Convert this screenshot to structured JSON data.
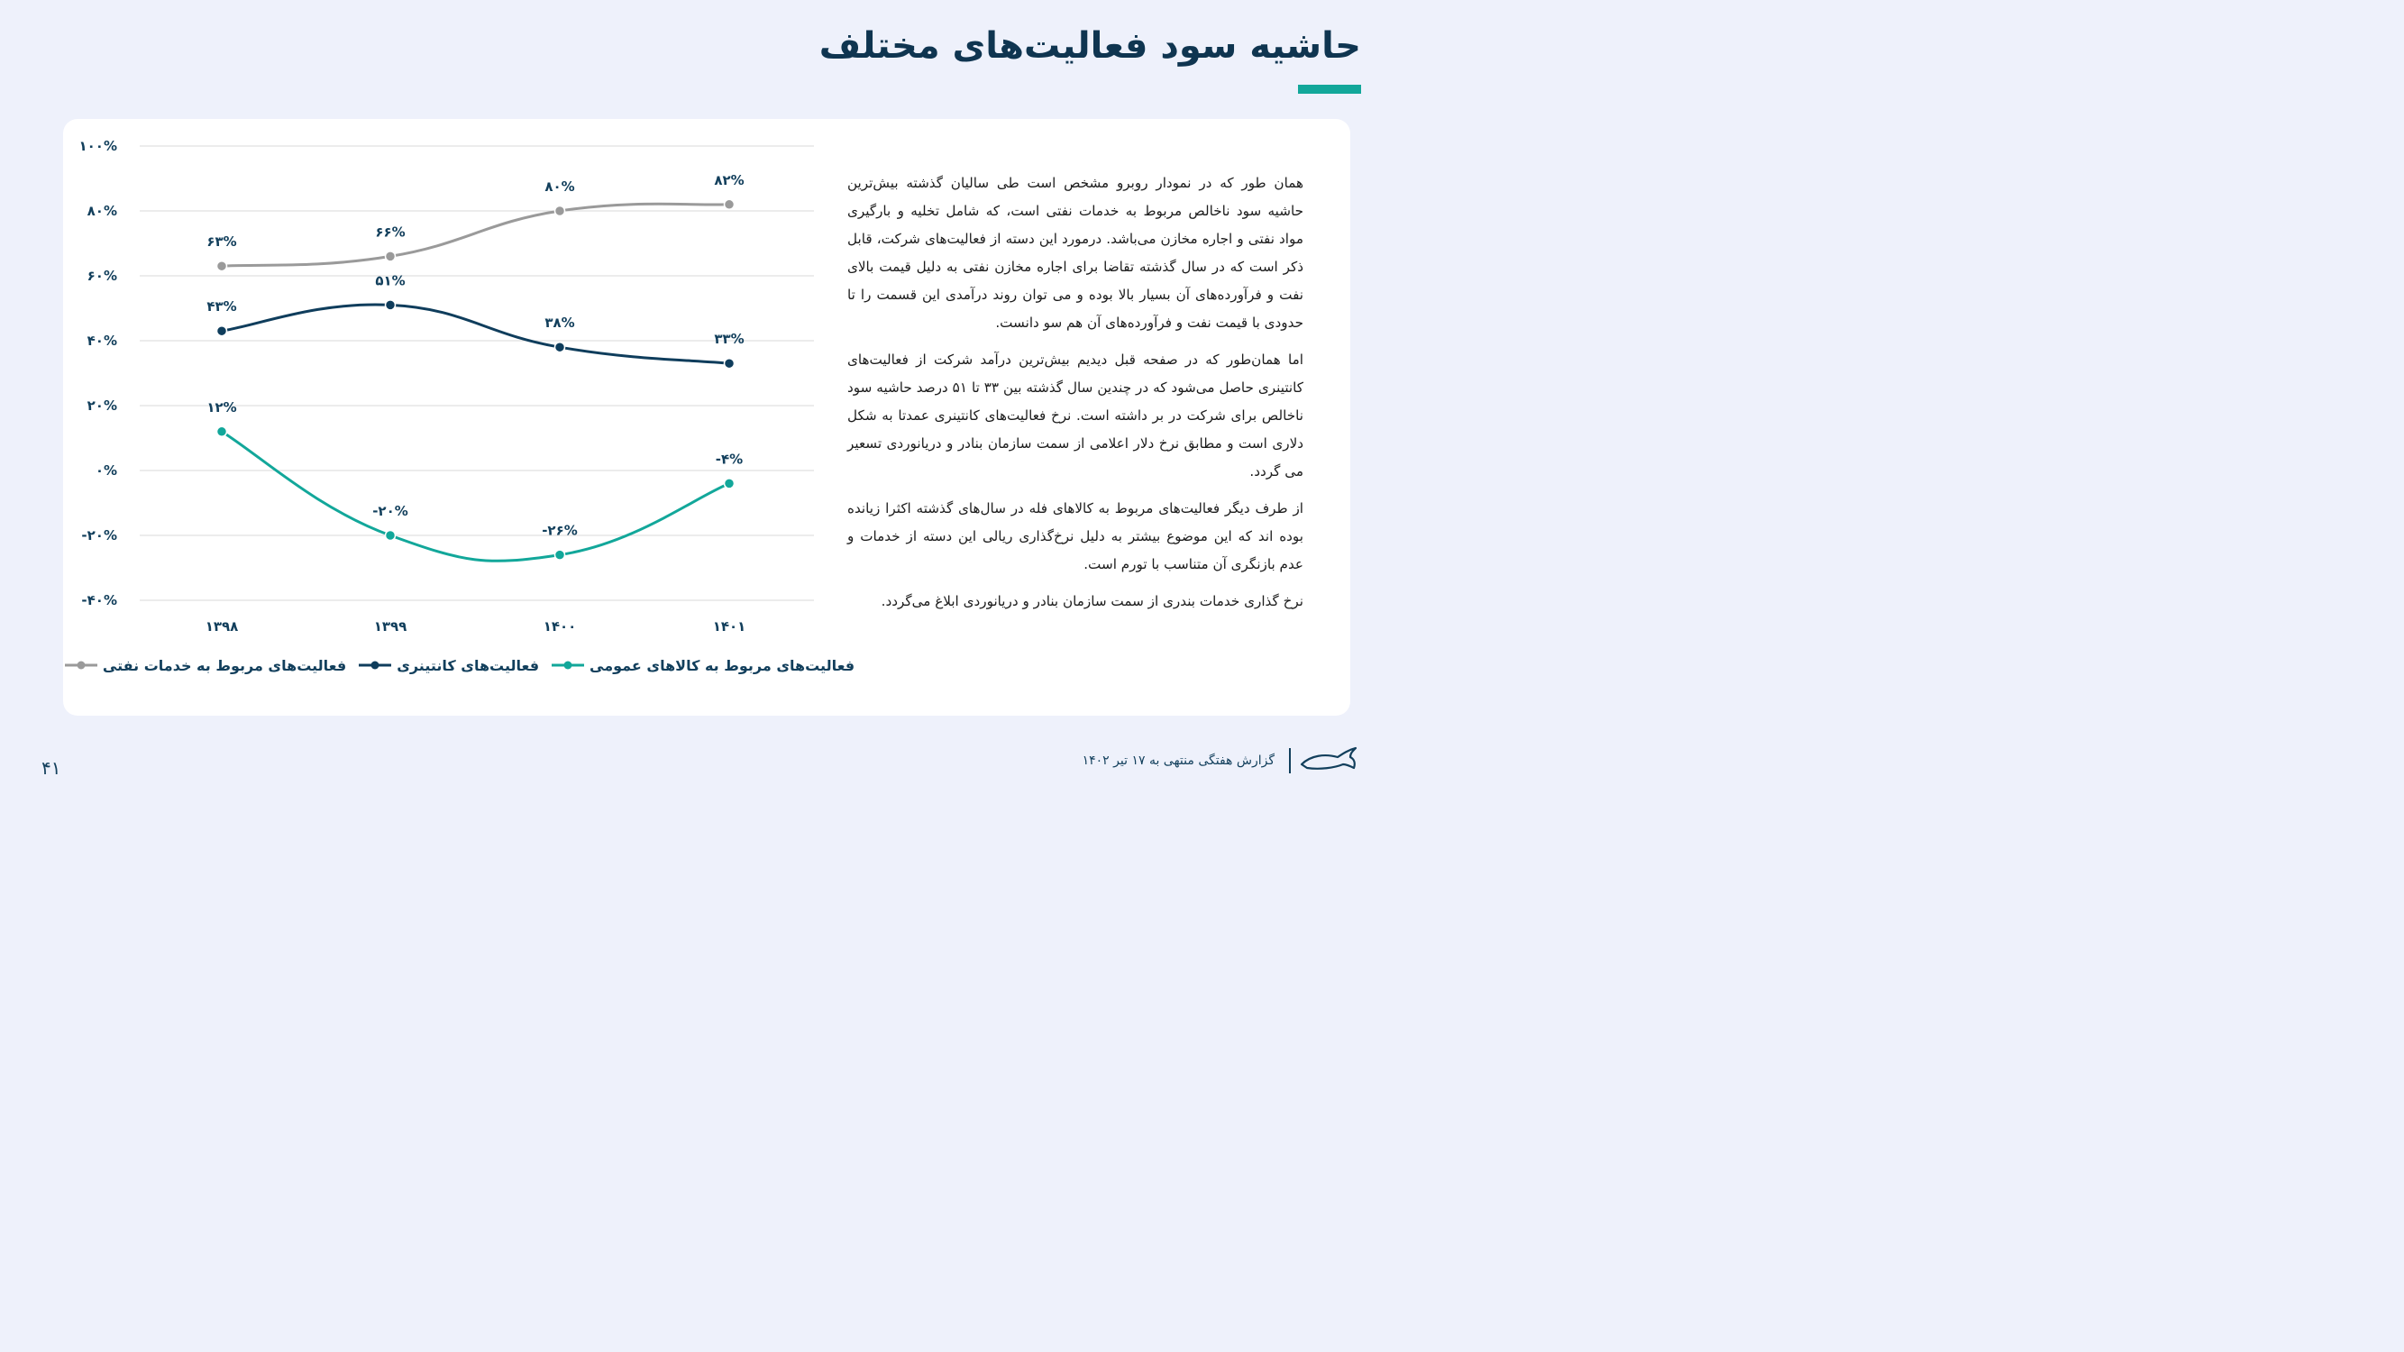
{
  "header": {
    "title": "حاشیه سود فعالیت‌های مختلف"
  },
  "paragraphs": [
    "همان طور که در نمودار روبرو مشخص است طی سالیان گذشته بیش‌ترین حاشیه سود ناخالص مربوط به خدمات نفتی است، که شامل تخلیه و بارگیری مواد نفتی و اجاره مخازن می‌باشد. درمورد این دسته از فعالیت‌های شرکت، قابل ذکر است که در سال گذشته تقاضا برای اجاره مخازن نفتی به دلیل قیمت بالای نفت و فرآورده‌های آن بسیار بالا بوده و می توان روند درآمدی این قسمت را تا حدودی با قیمت نفت و فرآورده‌های آن هم سو دانست.",
    "اما همان‌طور که در صفحه قبل دیدیم بیش‌ترین درآمد شرکت از فعالیت‌های کانتینری حاصل می‌شود که در چندین سال گذشته بین ۳۳ تا ۵۱ درصد حاشیه سود ناخالص برای شرکت در بر داشته است. نرخ فعالیت‌های کانتینری عمدتا به شکل دلاری است و مطابق نرخ دلار اعلامی از سمت سازمان بنادر و دریانوردی تسعیر می گردد.",
    "از طرف دیگر فعالیت‌های مربوط به کالاهای فله در سال‌های گذشته اکثرا زیانده بوده اند که این موضوع بیشتر به دلیل نرخ‌گذاری ریالی این دسته از خدمات و عدم بازنگری آن متناسب با تورم است.",
    "نرخ گذاری خدمات بندری از سمت سازمان بنادر و دریانوردی ابلاغ می‌گردد."
  ],
  "footer": {
    "page_number": "۴۱",
    "report_label": "گزارش هفتگی منتهی به ۱۷ تیر ۱۴۰۲"
  },
  "colors": {
    "accent": "#12a79a",
    "navy": "#0f3d5c",
    "gray": "#9a9a9a"
  },
  "chart_data": {
    "type": "line",
    "categories": [
      "۱۳۹۸",
      "۱۳۹۹",
      "۱۴۰۰",
      "۱۴۰۱"
    ],
    "ylim": [
      -40,
      100
    ],
    "y_ticks": [
      100,
      80,
      60,
      40,
      20,
      0,
      -20,
      -40
    ],
    "y_tick_labels": [
      "۱۰۰%",
      "۸۰%",
      "۶۰%",
      "۴۰%",
      "۲۰%",
      "۰%",
      "-۲۰%",
      "-۴۰%"
    ],
    "grid": true,
    "legend_position": "bottom",
    "series": [
      {
        "name": "فعالیت‌های مربوط به خدمات نفتی",
        "values": [
          63,
          66,
          80,
          82
        ],
        "labels": [
          "۶۳%",
          "۶۶%",
          "۸۰%",
          "۸۲%"
        ],
        "color": "#9a9a9a"
      },
      {
        "name": "فعالیت‌های کانتینری",
        "values": [
          43,
          51,
          38,
          33
        ],
        "labels": [
          "۴۳%",
          "۵۱%",
          "۳۸%",
          "۳۳%"
        ],
        "color": "#0f3d5c"
      },
      {
        "name": "فعالیت‌های مربوط به کالاهای عمومی",
        "values": [
          12,
          -20,
          -26,
          -4
        ],
        "labels": [
          "۱۲%",
          "-۲۰%",
          "-۲۶%",
          "-۴%"
        ],
        "color": "#12a79a"
      }
    ],
    "legend_order": [
      2,
      1,
      0
    ]
  }
}
